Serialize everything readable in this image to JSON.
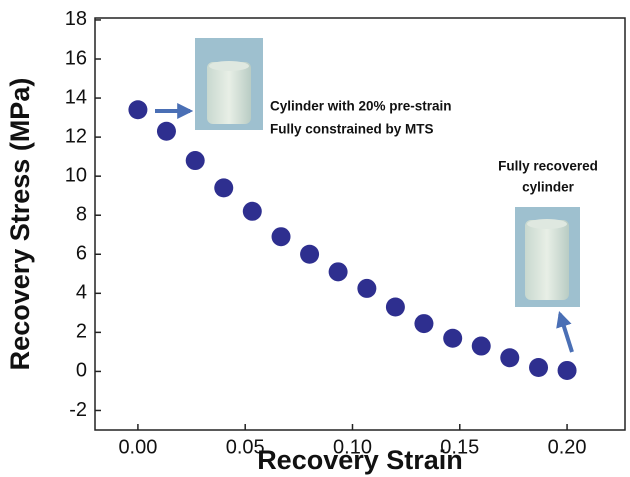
{
  "chart_data": {
    "type": "scatter",
    "xlabel": "Recovery Strain",
    "ylabel": "Recovery Stress (MPa)",
    "annotations": [
      "Cylinder with 20% pre-strain",
      "Fully constrained by MTS",
      "Fully recovered",
      "cylinder"
    ],
    "x": [
      0,
      0.0133,
      0.0267,
      0.04,
      0.0533,
      0.0667,
      0.08,
      0.0933,
      0.1067,
      0.12,
      0.1333,
      0.1467,
      0.16,
      0.1733,
      0.1867,
      0.2
    ],
    "values": [
      13.4,
      12.3,
      10.8,
      9.4,
      8.2,
      6.9,
      6.0,
      5.1,
      4.25,
      3.3,
      2.45,
      1.7,
      1.3,
      0.7,
      0.2,
      0.05
    ],
    "color": "#2e2f8f",
    "xlim": [
      -0.02,
      0.227
    ],
    "ylim": [
      -3,
      18.1
    ],
    "xticks": [
      {
        "value": 0,
        "label": "0.00"
      },
      {
        "value": 0.05,
        "label": "0.05"
      },
      {
        "value": 0.1,
        "label": "0.10"
      },
      {
        "value": 0.15,
        "label": "0.15"
      },
      {
        "value": 0.2,
        "label": "0.20"
      }
    ],
    "yticks": [
      -2,
      0,
      2,
      4,
      6,
      8,
      10,
      12,
      14,
      16,
      18
    ]
  }
}
